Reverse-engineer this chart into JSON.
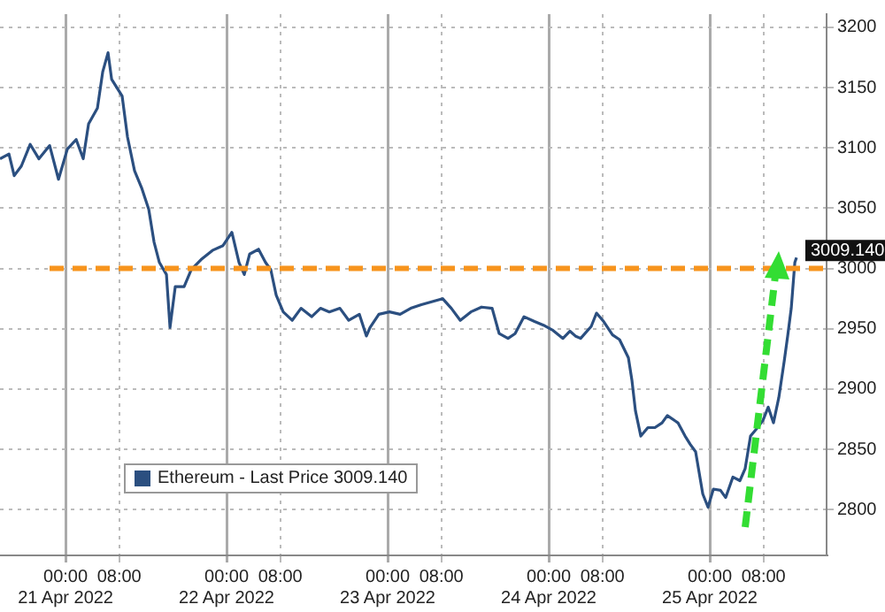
{
  "chart_data": {
    "type": "line",
    "x": [
      "2022-04-20T14:14",
      "2022-04-20T15:34",
      "2022-04-20T16:21",
      "2022-04-20T17:25",
      "2022-04-20T18:44",
      "2022-04-20T20:02",
      "2022-04-20T21:38",
      "2022-04-20T22:57",
      "2022-04-21T00:16",
      "2022-04-21T01:35",
      "2022-04-21T02:38",
      "2022-04-21T03:26",
      "2022-04-21T04:45",
      "2022-04-21T05:32",
      "2022-04-21T06:20",
      "2022-04-21T06:52",
      "2022-04-21T07:39",
      "2022-04-21T08:26",
      "2022-04-21T09:14",
      "2022-04-21T10:17",
      "2022-04-21T11:20",
      "2022-04-21T12:24",
      "2022-04-21T13:11",
      "2022-04-21T13:59",
      "2022-04-21T15:02",
      "2022-04-21T15:34",
      "2022-04-21T16:21",
      "2022-04-21T17:40",
      "2022-04-21T18:44",
      "2022-04-21T20:19",
      "2022-04-21T21:53",
      "2022-04-21T23:28",
      "2022-04-22T00:47",
      "2022-04-22T01:51",
      "2022-04-22T02:38",
      "2022-04-22T03:26",
      "2022-04-22T04:45",
      "2022-04-22T05:48",
      "2022-04-22T06:35",
      "2022-04-22T07:23",
      "2022-04-22T08:26",
      "2022-04-22T09:46",
      "2022-04-22T11:05",
      "2022-04-22T12:40",
      "2022-04-22T13:59",
      "2022-04-22T15:18",
      "2022-04-22T16:53",
      "2022-04-22T18:12",
      "2022-04-22T19:47",
      "2022-04-22T20:50",
      "2022-04-22T21:22",
      "2022-04-22T22:41",
      "2022-04-23T00:16",
      "2022-04-23T01:51",
      "2022-04-23T03:26",
      "2022-04-23T05:01",
      "2022-04-23T08:11",
      "2022-04-23T09:29",
      "2022-04-23T10:49",
      "2022-04-23T12:24",
      "2022-04-23T13:59",
      "2022-04-23T15:34",
      "2022-04-23T16:37",
      "2022-04-23T17:56",
      "2022-04-23T18:59",
      "2022-04-23T20:19",
      "2022-04-23T21:53",
      "2022-04-23T23:13",
      "2022-04-24T00:32",
      "2022-04-24T02:07",
      "2022-04-24T03:10",
      "2022-04-24T03:58",
      "2022-04-24T04:45",
      "2022-04-24T06:20",
      "2022-04-24T07:07",
      "2022-04-24T08:11",
      "2022-04-24T09:30",
      "2022-04-24T10:33",
      "2022-04-24T11:52",
      "2022-04-24T12:24",
      "2022-04-24T12:55",
      "2022-04-24T13:43",
      "2022-04-24T14:46",
      "2022-04-24T15:49",
      "2022-04-24T16:53",
      "2022-04-24T17:40",
      "2022-04-24T19:15",
      "2022-04-24T20:19",
      "2022-04-24T21:06",
      "2022-04-24T21:53",
      "2022-04-24T22:57",
      "2022-04-24T23:44",
      "2022-04-25T00:32",
      "2022-04-25T01:35",
      "2022-04-25T02:22",
      "2022-04-25T03:26",
      "2022-04-25T04:29",
      "2022-04-25T05:16",
      "2022-04-25T06:04",
      "2022-04-25T07:07",
      "2022-04-25T07:55",
      "2022-04-25T08:42",
      "2022-04-25T09:29",
      "2022-04-25T10:17",
      "2022-04-25T11:05",
      "2022-04-25T11:36",
      "2022-04-25T12:08",
      "2022-04-25T12:40",
      "2022-04-25T12:55"
    ],
    "series": [
      {
        "name": "Ethereum - Last Price 3009.140",
        "color": "#2b4f80",
        "values": [
          3091,
          3095,
          3077,
          3085,
          3103,
          3091,
          3102,
          3074,
          3099,
          3107,
          3091,
          3120,
          3133,
          3163,
          3179,
          3157,
          3150,
          3143,
          3109,
          3081,
          3067,
          3049,
          3022,
          3005,
          2995,
          2951,
          2985,
          2985,
          2999,
          3008,
          3015,
          3019,
          3030,
          3005,
          2995,
          3012,
          3016,
          3005,
          2999,
          2978,
          2964,
          2957,
          2967,
          2960,
          2967,
          2964,
          2967,
          2957,
          2962,
          2944,
          2951,
          2962,
          2964,
          2962,
          2967,
          2970,
          2975,
          2967,
          2957,
          2964,
          2968,
          2967,
          2946,
          2942,
          2946,
          2960,
          2956,
          2953,
          2949,
          2942,
          2948,
          2944,
          2942,
          2952,
          2963,
          2956,
          2945,
          2941,
          2926,
          2907,
          2882,
          2861,
          2868,
          2868,
          2872,
          2878,
          2872,
          2861,
          2854,
          2848,
          2813,
          2802,
          2817,
          2816,
          2810,
          2827,
          2824,
          2834,
          2861,
          2868,
          2874,
          2885,
          2872,
          2893,
          2923,
          2944,
          2967,
          3005,
          3009.14
        ]
      }
    ],
    "xlim": [
      "2022-04-20T14:14",
      "2022-04-25T17:24"
    ],
    "xticks": [
      {
        "value": "2022-04-21T00:00",
        "label": "00:00\n21 Apr 2022"
      },
      {
        "value": "2022-04-21T08:00",
        "label": "08:00"
      },
      {
        "value": "2022-04-22T00:00",
        "label": "00:00\n22 Apr 2022"
      },
      {
        "value": "2022-04-22T08:00",
        "label": "08:00"
      },
      {
        "value": "2022-04-23T00:00",
        "label": "00:00\n23 Apr 2022"
      },
      {
        "value": "2022-04-23T08:00",
        "label": "08:00"
      },
      {
        "value": "2022-04-24T00:00",
        "label": "00:00\n24 Apr 2022"
      },
      {
        "value": "2022-04-24T08:00",
        "label": "08:00"
      },
      {
        "value": "2022-04-25T00:00",
        "label": "00:00\n25 Apr 2022"
      },
      {
        "value": "2022-04-25T08:00",
        "label": "08:00"
      }
    ],
    "ylim": [
      2762,
      3211
    ],
    "yticks": [
      2800,
      2850,
      2900,
      2950,
      3000,
      3050,
      3100,
      3150,
      3200
    ],
    "ref_lines": [
      {
        "axis": "y",
        "value": 3000,
        "color": "#f7941d",
        "line_style": "dashed"
      }
    ],
    "annotations": [
      {
        "text": "3009.140",
        "x": "2022-04-25T12:55",
        "y": 3009.14
      }
    ],
    "grid": true,
    "legend": "bottom left",
    "marker": "none",
    "line_style": "solid"
  }
}
